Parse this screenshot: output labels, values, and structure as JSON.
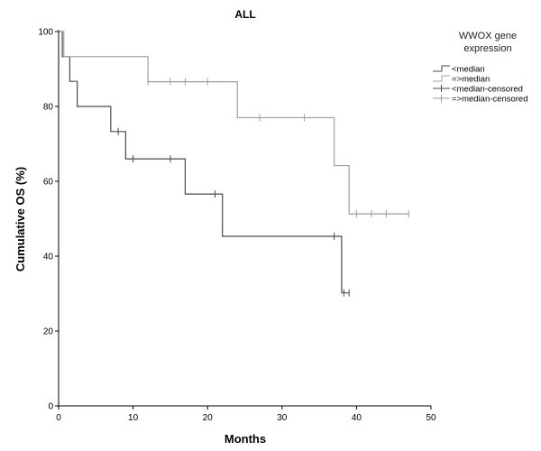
{
  "chart_data": {
    "type": "line",
    "title": "ALL",
    "xlabel": "Months",
    "ylabel": "Cumulative OS (%)",
    "xlim": [
      0,
      50
    ],
    "ylim": [
      0,
      100
    ],
    "xticks": [
      0,
      10,
      20,
      30,
      40,
      50
    ],
    "yticks": [
      0,
      20,
      40,
      60,
      80,
      100
    ],
    "grid": false,
    "legend": {
      "title_lines": [
        "WWOX gene",
        "expression"
      ],
      "placement": "top-right",
      "entries": [
        "<median",
        "=>median",
        "<median-censored",
        "=>median-censored"
      ]
    },
    "series": [
      {
        "name": "<median",
        "color": "#4a4a4a",
        "step_x": [
          0,
          0.5,
          1.5,
          2.5,
          7,
          9,
          17,
          22,
          38
        ],
        "step_y": [
          100,
          93.3,
          86.7,
          80,
          73.3,
          66,
          56.6,
          45.3,
          30.2
        ],
        "end_x": 39,
        "censored": [
          {
            "x": 8,
            "y": 73.3
          },
          {
            "x": 10,
            "y": 66
          },
          {
            "x": 15,
            "y": 66
          },
          {
            "x": 21,
            "y": 56.6
          },
          {
            "x": 37,
            "y": 45.3
          },
          {
            "x": 38.3,
            "y": 30.2
          },
          {
            "x": 39,
            "y": 30.2
          }
        ]
      },
      {
        "name": "=>median",
        "color": "#9e9e9e",
        "step_x": [
          0,
          0.7,
          12,
          24,
          37,
          39
        ],
        "step_y": [
          100,
          93.3,
          86.6,
          77,
          64.2,
          51.3
        ],
        "end_x": 47,
        "censored": [
          {
            "x": 12,
            "y": 86.6
          },
          {
            "x": 15,
            "y": 86.6
          },
          {
            "x": 17,
            "y": 86.6
          },
          {
            "x": 20,
            "y": 86.6
          },
          {
            "x": 27,
            "y": 77
          },
          {
            "x": 33,
            "y": 77
          },
          {
            "x": 40,
            "y": 51.3
          },
          {
            "x": 42,
            "y": 51.3
          },
          {
            "x": 44,
            "y": 51.3
          },
          {
            "x": 47,
            "y": 51.3
          }
        ]
      }
    ]
  }
}
